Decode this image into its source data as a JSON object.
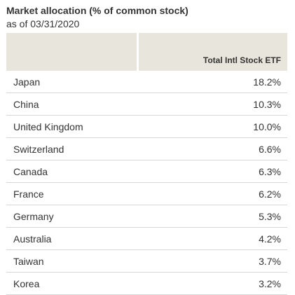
{
  "header": {
    "title": "Market allocation (% of common stock)",
    "subtitle": "as of 03/31/2020"
  },
  "table": {
    "columns": [
      "",
      "Total Intl Stock ETF"
    ],
    "rows": [
      {
        "country": "Japan",
        "value": "18.2%"
      },
      {
        "country": "China",
        "value": "10.3%"
      },
      {
        "country": "United Kingdom",
        "value": "10.0%"
      },
      {
        "country": "Switzerland",
        "value": "6.6%"
      },
      {
        "country": "Canada",
        "value": "6.3%"
      },
      {
        "country": "France",
        "value": "6.2%"
      },
      {
        "country": "Germany",
        "value": "5.3%"
      },
      {
        "country": "Australia",
        "value": "4.2%"
      },
      {
        "country": "Taiwan",
        "value": "3.7%"
      },
      {
        "country": "Korea",
        "value": "3.2%"
      }
    ]
  },
  "colors": {
    "header_background": "#e8e5dc",
    "row_divider": "#d6d6d6",
    "text": "#333333"
  }
}
